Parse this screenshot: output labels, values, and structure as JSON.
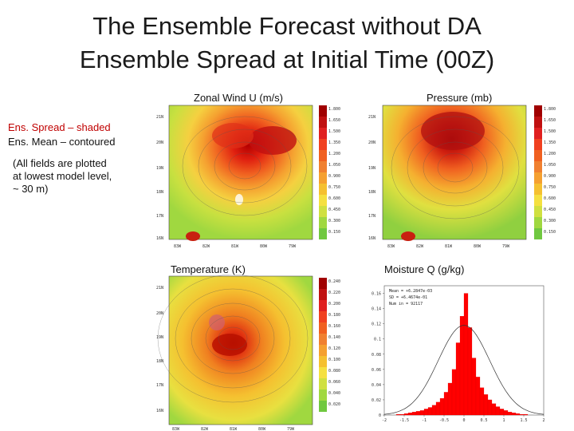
{
  "slide": {
    "title_line1": "The Ensemble Forecast without DA",
    "title_line2": "Ensemble Spread at Initial Time (00Z)"
  },
  "legend_text": {
    "spread": "Ens. Spread – shaded",
    "mean": "Ens. Mean – contoured",
    "note_lines": [
      "(All fields are plotted",
      "at lowest model level,",
      "~ 30 m)"
    ]
  },
  "panels": {
    "wind": {
      "title": "Zonal Wind U (m/s)",
      "colorbar": [
        "1.800",
        "1.650",
        "1.500",
        "1.350",
        "1.200",
        "1.050",
        "0.900",
        "0.750",
        "0.600",
        "0.450",
        "0.300",
        "0.150"
      ]
    },
    "pressure": {
      "title": "Pressure (mb)",
      "colorbar": [
        "1.800",
        "1.650",
        "1.500",
        "1.350",
        "1.200",
        "1.050",
        "0.900",
        "0.750",
        "0.600",
        "0.450",
        "0.300",
        "0.150"
      ]
    },
    "temperature": {
      "title": "Temperature (K)",
      "colorbar": [
        "0.240",
        "0.220",
        "0.200",
        "0.180",
        "0.160",
        "0.140",
        "0.120",
        "0.100",
        "0.080",
        "0.060",
        "0.040",
        "0.020"
      ]
    },
    "moisture": {
      "title": "Moisture Q (g/kg)"
    }
  },
  "map_axes": {
    "lat": [
      "21N",
      "20N",
      "19N",
      "18N",
      "17N",
      "16N"
    ],
    "lon": [
      "83W",
      "82W",
      "81W",
      "80W",
      "79W"
    ]
  },
  "chart_data": {
    "type": "bar",
    "title": "Moisture Q (g/kg)",
    "stats": [
      "Mean = +6.2847e-03",
      "SD = +6.4674e-01",
      "Num in = 92117"
    ],
    "x": [
      -1.95,
      -1.85,
      -1.75,
      -1.65,
      -1.55,
      -1.45,
      -1.35,
      -1.25,
      -1.15,
      -1.05,
      -0.95,
      -0.85,
      -0.75,
      -0.65,
      -0.55,
      -0.45,
      -0.35,
      -0.25,
      -0.15,
      -0.05,
      0.05,
      0.15,
      0.25,
      0.35,
      0.45,
      0.55,
      0.65,
      0.75,
      0.85,
      0.95,
      1.05,
      1.15,
      1.25,
      1.35,
      1.45,
      1.55,
      1.65,
      1.75,
      1.85,
      1.95
    ],
    "values": [
      0.0,
      0.0,
      0.0,
      0.001,
      0.001,
      0.002,
      0.003,
      0.004,
      0.005,
      0.006,
      0.008,
      0.01,
      0.013,
      0.017,
      0.022,
      0.03,
      0.042,
      0.06,
      0.095,
      0.13,
      0.16,
      0.115,
      0.075,
      0.05,
      0.036,
      0.027,
      0.02,
      0.015,
      0.011,
      0.008,
      0.006,
      0.004,
      0.003,
      0.002,
      0.001,
      0.001,
      0.0,
      0.0,
      0.0,
      0.0
    ],
    "xlim": [
      -2,
      2
    ],
    "ylim": [
      0,
      0.17
    ],
    "xticks": [
      "-2",
      "-1.5",
      "-1",
      "-0.5",
      "0",
      "0.5",
      "1",
      "1.5",
      "2"
    ],
    "yticks": [
      "0",
      "0.02",
      "0.04",
      "0.06",
      "0.08",
      "0.1",
      "0.12",
      "0.14",
      "0.16"
    ],
    "grid": false
  }
}
